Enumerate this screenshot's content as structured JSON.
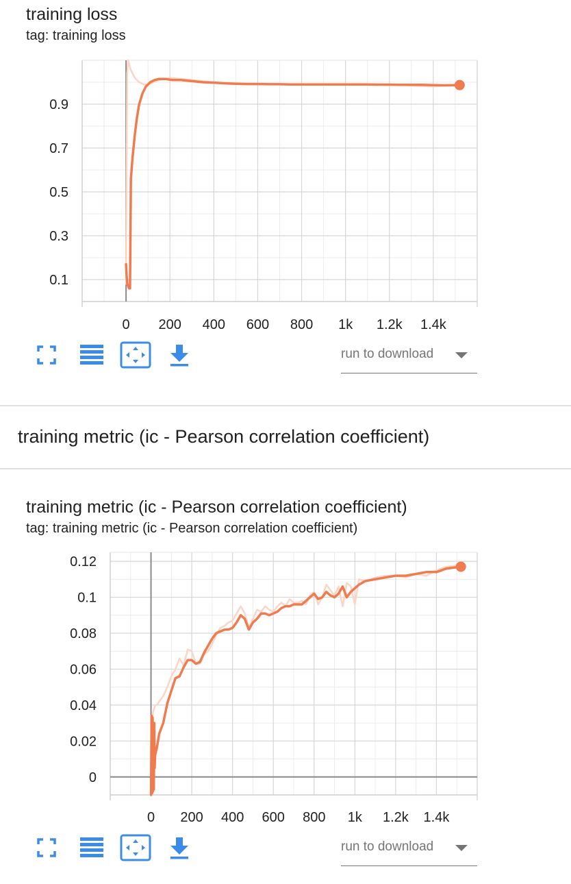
{
  "cards": [
    {
      "title": "training loss",
      "tag": "tag: training loss",
      "run_label": "run to download"
    },
    {
      "title": "training metric (ic - Pearson correlation coefficient)",
      "tag": "tag: training metric (ic - Pearson correlation coefficient)",
      "run_label": "run to download"
    }
  ],
  "group_header": "training metric (ic - Pearson correlation coefficient)",
  "icons": [
    "fullscreen-icon",
    "list-icon",
    "fit-domain-icon",
    "download-icon"
  ],
  "colors": {
    "smoothed": "#ef7b4f",
    "raw": "#fbd5c5",
    "icon": "#3b8be8"
  },
  "chart_data": [
    {
      "type": "line",
      "title": "training loss",
      "xlim": [
        -200,
        1600
      ],
      "ylim": [
        0,
        1.1
      ],
      "x_ticks": [
        0,
        200,
        400,
        600,
        800,
        1000,
        1200,
        1400
      ],
      "x_tick_labels": [
        "0",
        "200",
        "400",
        "600",
        "800",
        "1k",
        "1.2k",
        "1.4k"
      ],
      "y_ticks": [
        0.1,
        0.3,
        0.5,
        0.7,
        0.9
      ],
      "y_tick_labels": [
        "0.1",
        "0.3",
        "0.5",
        "0.7",
        "0.9"
      ],
      "series": [
        {
          "role": "raw",
          "x": [
            0,
            5,
            10,
            15,
            20,
            30,
            40,
            60,
            80,
            100,
            150,
            200,
            300,
            400,
            600,
            800,
            1000,
            1200,
            1400,
            1520
          ],
          "y": [
            0.08,
            1.04,
            1.1,
            1.08,
            1.06,
            1.04,
            1.02,
            1.0,
            0.99,
            0.99,
            1.01,
            1.02,
            1.01,
            1.0,
            0.99,
            0.99,
            0.99,
            0.99,
            0.98,
            0.99
          ]
        },
        {
          "role": "smoothed",
          "x": [
            0,
            3,
            6,
            10,
            14,
            18,
            22,
            30,
            40,
            50,
            60,
            75,
            90,
            110,
            130,
            150,
            180,
            210,
            250,
            300,
            350,
            400,
            450,
            500,
            550,
            600,
            650,
            700,
            750,
            800,
            850,
            900,
            950,
            1000,
            1050,
            1100,
            1150,
            1200,
            1250,
            1300,
            1350,
            1400,
            1450,
            1520
          ],
          "y": [
            0.17,
            0.11,
            0.08,
            0.07,
            0.06,
            0.06,
            0.56,
            0.66,
            0.76,
            0.84,
            0.9,
            0.95,
            0.98,
            1.0,
            1.01,
            1.015,
            1.015,
            1.01,
            1.01,
            1.005,
            1.0,
            0.998,
            0.995,
            0.993,
            0.992,
            0.992,
            0.991,
            0.991,
            0.99,
            0.99,
            0.99,
            0.99,
            0.99,
            0.99,
            0.99,
            0.99,
            0.989,
            0.989,
            0.988,
            0.988,
            0.988,
            0.987,
            0.986,
            0.987
          ]
        }
      ]
    },
    {
      "type": "line",
      "title": "training metric (ic - Pearson correlation coefficient)",
      "xlim": [
        -200,
        1600
      ],
      "ylim": [
        -0.01,
        0.125
      ],
      "x_ticks": [
        0,
        200,
        400,
        600,
        800,
        1000,
        1200,
        1400
      ],
      "x_tick_labels": [
        "0",
        "200",
        "400",
        "600",
        "800",
        "1k",
        "1.2k",
        "1.4k"
      ],
      "y_ticks": [
        0,
        0.02,
        0.04,
        0.06,
        0.08,
        0.1,
        0.12
      ],
      "y_tick_labels": [
        "0",
        "0.02",
        "0.04",
        "0.06",
        "0.08",
        "0.1",
        "0.12"
      ],
      "series": [
        {
          "role": "raw",
          "x": [
            0,
            5,
            10,
            15,
            20,
            30,
            40,
            60,
            80,
            100,
            120,
            140,
            160,
            180,
            200,
            220,
            240,
            260,
            280,
            300,
            320,
            340,
            360,
            380,
            400,
            420,
            440,
            460,
            480,
            500,
            520,
            540,
            560,
            580,
            600,
            620,
            640,
            660,
            680,
            700,
            720,
            740,
            760,
            780,
            800,
            820,
            840,
            860,
            880,
            900,
            920,
            940,
            960,
            980,
            1000,
            1020,
            1050,
            1100,
            1150,
            1200,
            1250,
            1300,
            1350,
            1400,
            1450,
            1520
          ],
          "y": [
            -0.005,
            0.03,
            0.036,
            0.038,
            0.04,
            0.04,
            0.042,
            0.045,
            0.05,
            0.056,
            0.06,
            0.066,
            0.062,
            0.071,
            0.07,
            0.063,
            0.063,
            0.068,
            0.07,
            0.074,
            0.079,
            0.083,
            0.084,
            0.086,
            0.087,
            0.091,
            0.095,
            0.091,
            0.083,
            0.088,
            0.093,
            0.092,
            0.095,
            0.093,
            0.092,
            0.095,
            0.097,
            0.095,
            0.099,
            0.097,
            0.097,
            0.098,
            0.096,
            0.101,
            0.103,
            0.096,
            0.1,
            0.107,
            0.104,
            0.101,
            0.106,
            0.095,
            0.108,
            0.106,
            0.096,
            0.11,
            0.109,
            0.111,
            0.112,
            0.112,
            0.111,
            0.113,
            0.112,
            0.115,
            0.117,
            0.118
          ]
        },
        {
          "role": "smoothed",
          "x": [
            0,
            3,
            6,
            8,
            10,
            12,
            14,
            16,
            18,
            20,
            30,
            40,
            60,
            80,
            100,
            120,
            140,
            160,
            180,
            200,
            220,
            240,
            260,
            280,
            300,
            320,
            340,
            360,
            380,
            400,
            420,
            440,
            460,
            480,
            500,
            520,
            540,
            560,
            580,
            600,
            620,
            640,
            660,
            680,
            700,
            720,
            740,
            760,
            780,
            800,
            820,
            840,
            860,
            880,
            900,
            920,
            940,
            960,
            980,
            1000,
            1020,
            1050,
            1100,
            1150,
            1200,
            1250,
            1300,
            1350,
            1400,
            1450,
            1520
          ],
          "y": [
            -0.01,
            0.034,
            -0.009,
            0.033,
            -0.008,
            0.025,
            -0.007,
            0.03,
            0.005,
            0.012,
            0.017,
            0.024,
            0.03,
            0.041,
            0.048,
            0.055,
            0.056,
            0.061,
            0.065,
            0.065,
            0.063,
            0.064,
            0.069,
            0.073,
            0.077,
            0.08,
            0.081,
            0.082,
            0.082,
            0.083,
            0.086,
            0.09,
            0.088,
            0.082,
            0.086,
            0.088,
            0.091,
            0.091,
            0.09,
            0.091,
            0.092,
            0.094,
            0.095,
            0.095,
            0.096,
            0.096,
            0.096,
            0.098,
            0.1,
            0.102,
            0.099,
            0.1,
            0.103,
            0.101,
            0.1,
            0.102,
            0.106,
            0.1,
            0.103,
            0.105,
            0.107,
            0.109,
            0.11,
            0.111,
            0.112,
            0.112,
            0.113,
            0.114,
            0.114,
            0.116,
            0.117
          ]
        }
      ]
    }
  ]
}
